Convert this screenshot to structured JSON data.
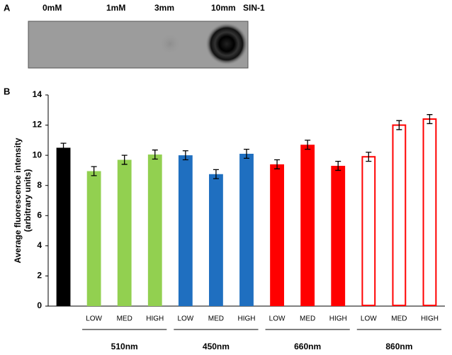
{
  "panel_a": {
    "label": "A",
    "lanes": [
      "0mM",
      "1mM",
      "3mm",
      "10mm"
    ],
    "reagent": "SIN-1"
  },
  "chart_data": {
    "type": "bar",
    "panel_label": "B",
    "ylabel": [
      "Average fluorescence intensity",
      "(arbitrary units)"
    ],
    "categories": [
      null,
      "LOW",
      "MED",
      "HIGH",
      "LOW",
      "MED",
      "HIGH",
      "LOW",
      "MED",
      "HIGH",
      "LOW",
      "MED",
      "HIGH"
    ],
    "groups": [
      "510nm",
      "450nm",
      "660nm",
      "860nm"
    ],
    "values": [
      10.5,
      8.95,
      9.7,
      10.05,
      10.0,
      8.75,
      10.1,
      9.4,
      10.7,
      9.3,
      9.9,
      12.0,
      12.4
    ],
    "errors": [
      0.3,
      0.3,
      0.3,
      0.3,
      0.3,
      0.3,
      0.3,
      0.3,
      0.3,
      0.3,
      0.3,
      0.3,
      0.3
    ],
    "colors": [
      "#000000",
      "#92d050",
      "#92d050",
      "#92d050",
      "#1f6fc0",
      "#1f6fc0",
      "#1f6fc0",
      "#ff0000",
      "#ff0000",
      "#ff0000",
      "#ff0000",
      "#ff0000",
      "#ff0000"
    ],
    "outline_only": [
      false,
      false,
      false,
      false,
      false,
      false,
      false,
      false,
      false,
      false,
      true,
      true,
      true
    ],
    "ylim": [
      0,
      14
    ],
    "yticks": [
      0,
      2,
      4,
      6,
      8,
      10,
      12,
      14
    ],
    "grid": false
  }
}
